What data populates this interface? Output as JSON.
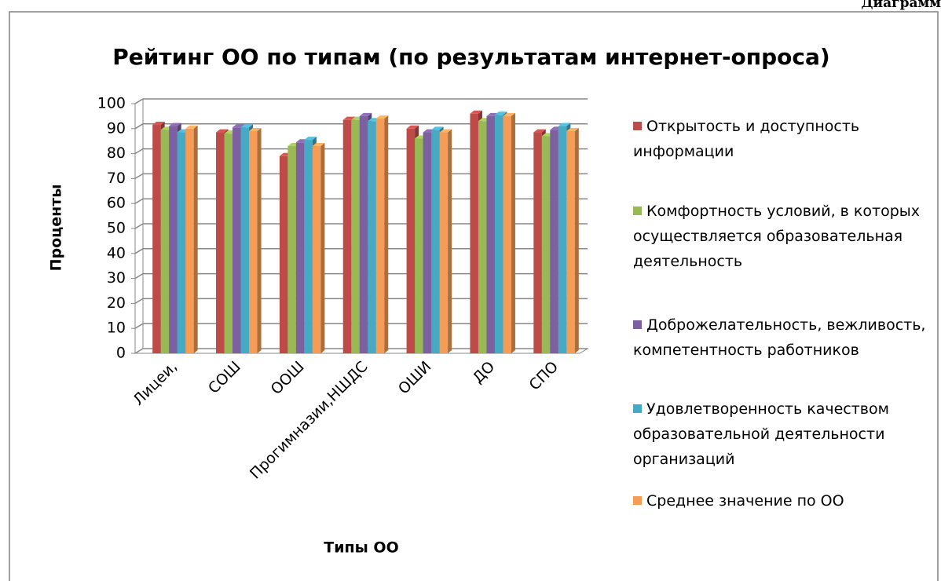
{
  "page_header": "Диаграмм",
  "chart_data": {
    "type": "bar3d",
    "title": "Рейтинг ОО по типам (по результатам интернет-опроса)",
    "y_label": "Проценты",
    "x_label": "Типы ОО",
    "categories": [
      "Лицеи,",
      "СОШ",
      "ООШ",
      "Прогимназии,НШДС",
      "ОШИ",
      "ДО",
      "СПО"
    ],
    "series": [
      {
        "name": "Открытость и доступность информации",
        "color": "#be4b48",
        "values": [
          91.5,
          88.5,
          79,
          93.5,
          90,
          96,
          88.5
        ]
      },
      {
        "name": "Комфортность условий, в которых осуществляется образовательная деятельность",
        "color": "#98b954",
        "values": [
          89.5,
          88,
          83,
          93.5,
          86,
          93,
          87
        ]
      },
      {
        "name": "Доброжелательность, вежливость, компетентность работников",
        "color": "#7d60a0",
        "values": [
          91,
          90.5,
          84.5,
          95,
          88.5,
          95,
          89.5
        ]
      },
      {
        "name": "Удовлетворенность качеством образовательной деятельности организаций",
        "color": "#46aac5",
        "values": [
          88.5,
          90.5,
          85.5,
          93,
          89.5,
          95.5,
          91
        ]
      },
      {
        "name": "Среднее значение по ОО",
        "color": "#f59d56",
        "values": [
          90,
          89,
          83,
          94,
          88.5,
          95,
          89
        ]
      }
    ],
    "ylim": [
      0,
      100
    ],
    "yticks": [
      0,
      10,
      20,
      30,
      40,
      50,
      60,
      70,
      80,
      90,
      100
    ],
    "grid": true,
    "legend": "right"
  }
}
